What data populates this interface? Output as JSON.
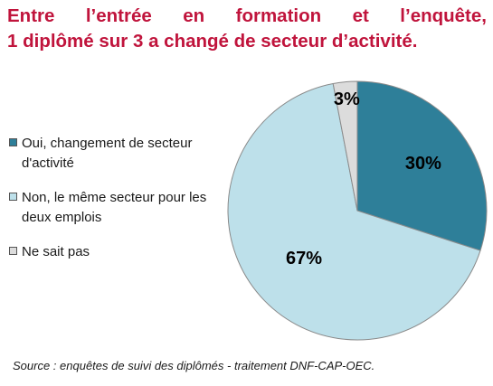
{
  "title": {
    "line1": "Entre l’entrée en formation et l’enquête,",
    "line2": "1 diplômé sur 3  a changé de secteur d’activité."
  },
  "chart_data": {
    "type": "pie",
    "categories": [
      "Oui, changement de secteur d'activité",
      "Non, le même secteur pour les deux emplois",
      "Ne sait pas"
    ],
    "values": [
      30,
      67,
      3
    ],
    "data_labels": [
      "30%",
      "67%",
      "3%"
    ],
    "colors": [
      "#2e7f99",
      "#bde0ea",
      "#dcdcdc"
    ],
    "legend_position": "left"
  },
  "legend": [
    {
      "label": "Oui, changement de secteur d'activité",
      "color": "#2e7f99"
    },
    {
      "label": "Non, le même secteur pour les deux emplois",
      "color": "#bde0ea"
    },
    {
      "label": "Ne sait pas",
      "color": "#dcdcdc"
    }
  ],
  "source": "Source : enquêtes de suivi des diplômés - traitement DNF-CAP-OEC."
}
